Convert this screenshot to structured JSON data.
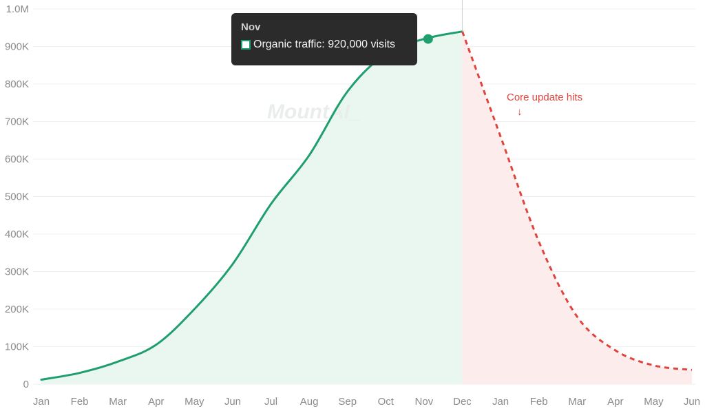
{
  "chart_data": {
    "type": "line",
    "categories": [
      "Jan",
      "Feb",
      "Mar",
      "Apr",
      "May",
      "Jun",
      "Jul",
      "Aug",
      "Sep",
      "Oct",
      "Nov",
      "Dec",
      "Jan",
      "Feb",
      "Mar",
      "Apr",
      "May",
      "Jun"
    ],
    "ylim": [
      0,
      1000000
    ],
    "yticks": [
      0,
      100000,
      200000,
      300000,
      400000,
      500000,
      600000,
      700000,
      800000,
      900000,
      1000000
    ],
    "ytick_labels": [
      "0",
      "100K",
      "200K",
      "300K",
      "400K",
      "500K",
      "600K",
      "700K",
      "800K",
      "900K",
      "1.0M"
    ],
    "grid": true,
    "series": [
      {
        "style": "solid",
        "color": "#1f9e6e",
        "fill": "#eaf6f0",
        "values": [
          12000,
          30000,
          60000,
          105000,
          200000,
          320000,
          480000,
          610000,
          780000,
          880000,
          920000,
          940000,
          null,
          null,
          null,
          null,
          null,
          null
        ]
      },
      {
        "style": "dashed",
        "color": "#e0443c",
        "fill": "#fdecec",
        "values": [
          null,
          null,
          null,
          null,
          null,
          null,
          null,
          null,
          null,
          null,
          null,
          940000,
          660000,
          380000,
          180000,
          90000,
          50000,
          38000
        ]
      }
    ],
    "annotation": {
      "text": "Core update hits",
      "arrow": "↓",
      "color": "#e0443c"
    },
    "watermark": "MountAI_"
  },
  "tooltip": {
    "title": "Nov",
    "label": "Organic traffic: 920,000 visits",
    "point_category_index": 10,
    "point_value": 920000
  }
}
